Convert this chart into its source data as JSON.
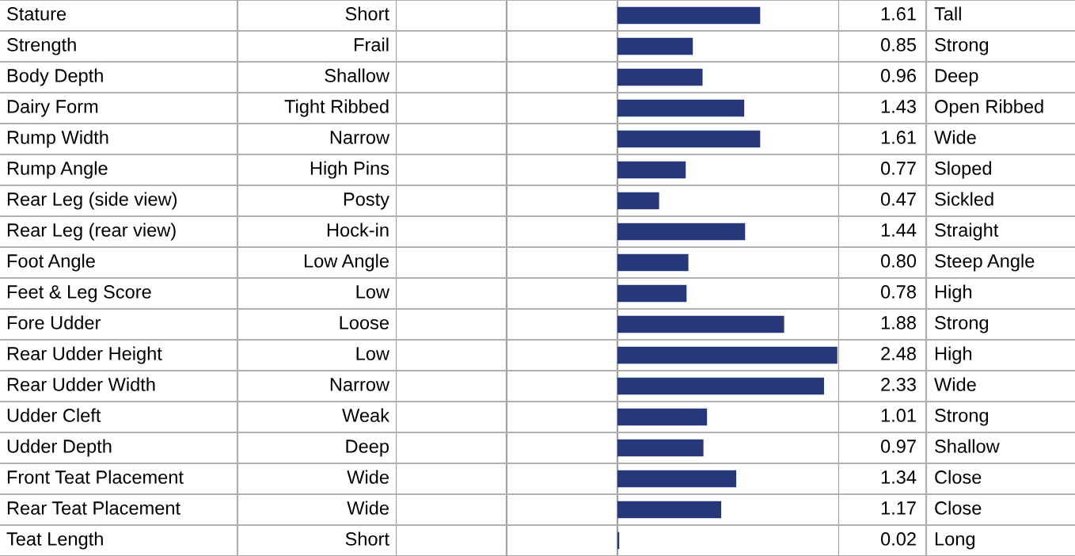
{
  "chart_data": {
    "type": "bar",
    "orientation": "horizontal",
    "categories": [
      "Stature",
      "Strength",
      "Body Depth",
      "Dairy Form",
      "Rump Width",
      "Rump Angle",
      "Rear Leg (side view)",
      "Rear Leg (rear view)",
      "Foot Angle",
      "Feet & Leg Score",
      "Fore Udder",
      "Rear Udder Height",
      "Rear Udder Width",
      "Udder Cleft",
      "Udder Depth",
      "Front Teat Placement",
      "Rear Teat Placement",
      "Teat Length"
    ],
    "values": [
      1.61,
      0.85,
      0.96,
      1.43,
      1.61,
      0.77,
      0.47,
      1.44,
      0.8,
      0.78,
      1.88,
      2.48,
      2.33,
      1.01,
      0.97,
      1.34,
      1.17,
      0.02
    ],
    "value_labels": [
      "1.61",
      "0.85",
      "0.96",
      "1.43",
      "1.61",
      "0.77",
      "0.47",
      "1.44",
      "0.80",
      "0.78",
      "1.88",
      "2.48",
      "2.33",
      "1.01",
      "0.97",
      "1.34",
      "1.17",
      "0.02"
    ],
    "color": "#26387a",
    "xlim": [
      -2.5,
      2.5
    ],
    "xticks": [
      {
        "value": -2.5,
        "label": null
      },
      {
        "value": -1.25,
        "label": null
      },
      {
        "value": 0,
        "label": null
      },
      {
        "value": 2.5,
        "label": null
      }
    ],
    "grid": "x",
    "annotations": [
      "Short",
      "Frail",
      "Shallow",
      "Tight Ribbed",
      "Narrow",
      "High Pins",
      "Posty",
      "Hock-in",
      "Low Angle",
      "Low",
      "Loose",
      "Low",
      "Narrow",
      "Weak",
      "Deep",
      "Wide",
      "Wide",
      "Short",
      "Tall",
      "Strong",
      "Deep",
      "Open Ribbed",
      "Wide",
      "Sloped",
      "Sickled",
      "Straight",
      "Steep Angle",
      "High",
      "Strong",
      "High",
      "Wide",
      "Strong",
      "Shallow",
      "Close",
      "Close",
      "Long"
    ]
  }
}
